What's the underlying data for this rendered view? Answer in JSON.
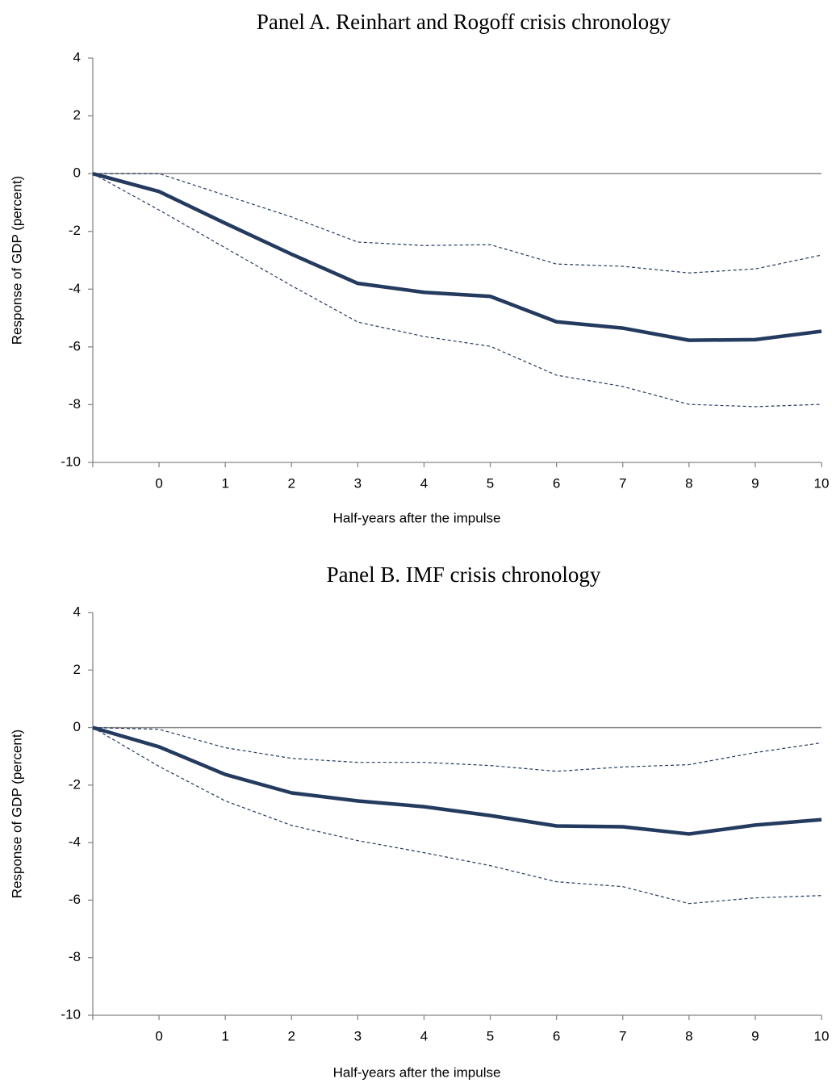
{
  "chart_data": [
    {
      "type": "line",
      "title": "Panel A.  Reinhart and Rogoff crisis chronology",
      "x_label": "Half-years after the impulse",
      "y_label": "Response of GDP (percent)",
      "x": [
        -1,
        0,
        1,
        2,
        3,
        4,
        5,
        6,
        7,
        8,
        9,
        10
      ],
      "xlim": [
        -1,
        10
      ],
      "xticks": [
        0,
        1,
        2,
        3,
        4,
        5,
        6,
        7,
        8,
        9,
        10
      ],
      "ylim": [
        -10,
        4
      ],
      "yticks": [
        -10,
        -8,
        -6,
        -4,
        -2,
        0,
        2,
        4
      ],
      "series": [
        {
          "color": "#243a5e",
          "dashed": false,
          "values": [
            0,
            -0.62,
            -1.72,
            -2.79,
            -3.8,
            -4.11,
            -4.25,
            -5.13,
            -5.35,
            -5.77,
            -5.75,
            -5.46
          ]
        },
        {
          "color": "#243a5e",
          "dashed": true,
          "values": [
            0,
            0,
            -0.75,
            -1.5,
            -2.37,
            -2.49,
            -2.46,
            -3.13,
            -3.21,
            -3.44,
            -3.3,
            -2.82
          ]
        },
        {
          "color": "#243a5e",
          "dashed": true,
          "values": [
            0,
            -1.26,
            -2.57,
            -3.88,
            -5.14,
            -5.64,
            -5.98,
            -6.98,
            -7.37,
            -7.99,
            -8.07,
            -7.99
          ]
        }
      ]
    },
    {
      "type": "line",
      "title": "Panel B.  IMF crisis chronology",
      "x_label": "Half-years after the impulse",
      "y_label": "Response of GDP (percent)",
      "x": [
        -1,
        0,
        1,
        2,
        3,
        4,
        5,
        6,
        7,
        8,
        9,
        10
      ],
      "xlim": [
        -1,
        10
      ],
      "xticks": [
        0,
        1,
        2,
        3,
        4,
        5,
        6,
        7,
        8,
        9,
        10
      ],
      "ylim": [
        -10,
        4
      ],
      "yticks": [
        -10,
        -8,
        -6,
        -4,
        -2,
        0,
        2,
        4
      ],
      "series": [
        {
          "color": "#243a5e",
          "dashed": false,
          "values": [
            0,
            -0.67,
            -1.63,
            -2.27,
            -2.55,
            -2.75,
            -3.06,
            -3.42,
            -3.45,
            -3.7,
            -3.39,
            -3.2
          ]
        },
        {
          "color": "#243a5e",
          "dashed": true,
          "values": [
            0,
            -0.06,
            -0.7,
            -1.07,
            -1.21,
            -1.21,
            -1.32,
            -1.52,
            -1.37,
            -1.29,
            -0.87,
            -0.53
          ]
        },
        {
          "color": "#243a5e",
          "dashed": true,
          "values": [
            0,
            -1.35,
            -2.55,
            -3.4,
            -3.93,
            -4.35,
            -4.8,
            -5.36,
            -5.53,
            -6.12,
            -5.92,
            -5.84
          ]
        }
      ]
    }
  ]
}
